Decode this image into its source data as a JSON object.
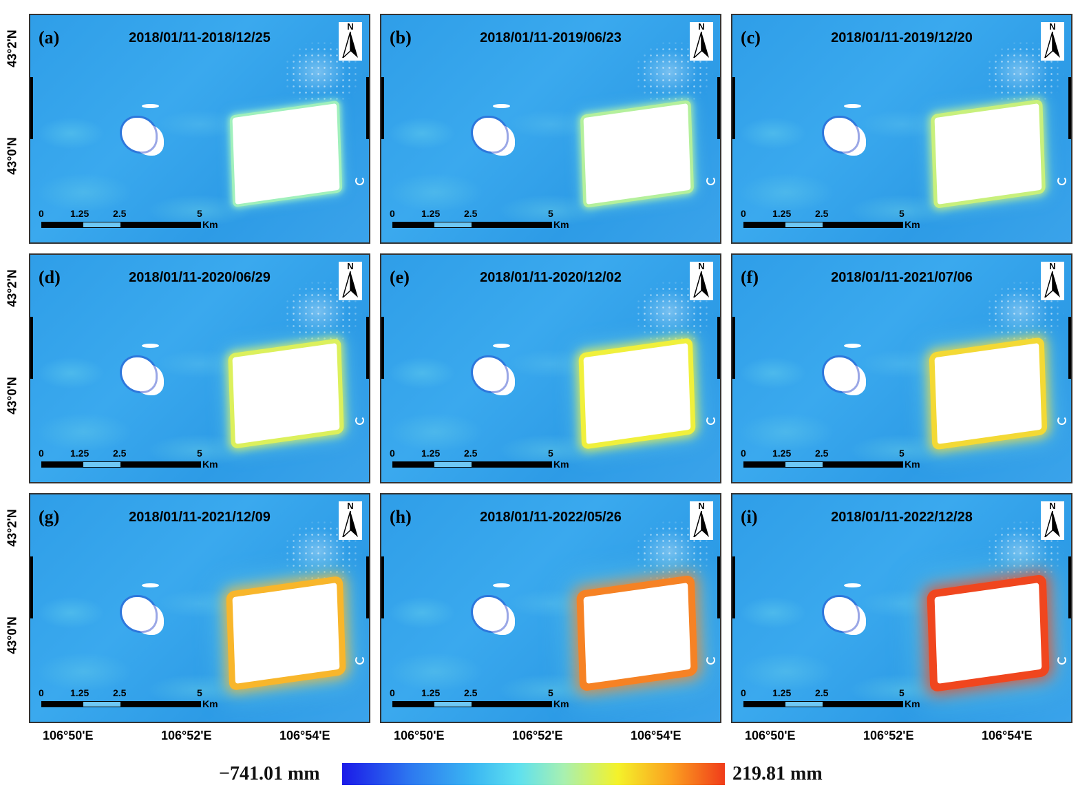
{
  "panels": [
    {
      "label": "(a)",
      "dates": "2018/01/11-2018/12/25",
      "edge_level": 0.1
    },
    {
      "label": "(b)",
      "dates": "2018/01/11-2019/06/23",
      "edge_level": 0.2
    },
    {
      "label": "(c)",
      "dates": "2018/01/11-2019/12/20",
      "edge_level": 0.3
    },
    {
      "label": "(d)",
      "dates": "2018/01/11-2020/06/29",
      "edge_level": 0.4
    },
    {
      "label": "(e)",
      "dates": "2018/01/11-2020/12/02",
      "edge_level": 0.5
    },
    {
      "label": "(f)",
      "dates": "2018/01/11-2021/07/06",
      "edge_level": 0.6
    },
    {
      "label": "(g)",
      "dates": "2018/01/11-2021/12/09",
      "edge_level": 0.75
    },
    {
      "label": "(h)",
      "dates": "2018/01/11-2022/05/26",
      "edge_level": 0.88
    },
    {
      "label": "(i)",
      "dates": "2018/01/11-2022/12/28",
      "edge_level": 1.0
    }
  ],
  "north_label": "N",
  "scale_bar": {
    "ticks": [
      "0",
      "1.25",
      "2.5",
      "5"
    ],
    "unit": "Km"
  },
  "lat_labels": [
    "43°2'N",
    "43°0'N"
  ],
  "lon_labels": [
    "106°50'E",
    "106°52'E",
    "106°54'E"
  ],
  "colorbar": {
    "min_label": "−741.01 mm",
    "max_label": "219.81 mm"
  },
  "colors": {
    "water": "#2f9ee8",
    "low": "#1b1ae8",
    "high": "#f03c1a"
  }
}
